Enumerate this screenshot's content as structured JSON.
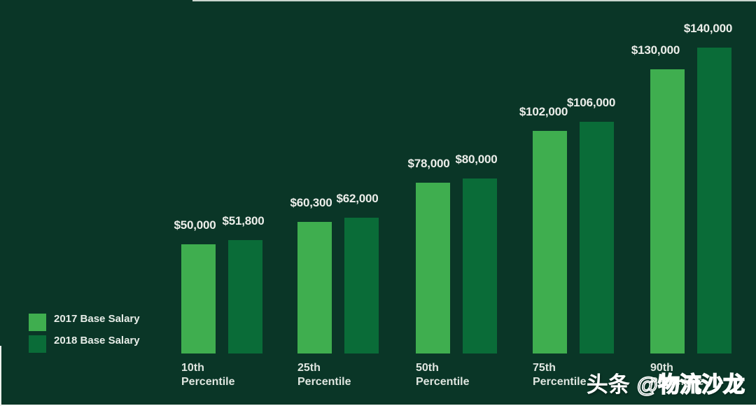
{
  "page": {
    "background_color": "#0a3627",
    "value_text_color": "#eceeea",
    "axis_text_color": "#dfe6e0"
  },
  "chart_data": {
    "type": "bar",
    "title": "",
    "categories": [
      "10th Percentile",
      "25th Percentile",
      "50th Percentile",
      "75th Percentile",
      "90th Percentile"
    ],
    "series": [
      {
        "name": "2017 Base Salary",
        "color": "#3fae4f",
        "values": [
          50000,
          60300,
          78000,
          102000,
          130000
        ],
        "labels": [
          "$50,000",
          "$60,300",
          "$78,000",
          "$102,000",
          "$130,000"
        ]
      },
      {
        "name": "2018 Base Salary",
        "color": "#0a6c38",
        "values": [
          51800,
          62000,
          80000,
          106000,
          140000
        ],
        "labels": [
          "$51,800",
          "$62,000",
          "$80,000",
          "$106,000",
          "$140,000"
        ]
      }
    ],
    "ylim": [
      0,
      140000
    ],
    "grid": false,
    "axes_drawn": false,
    "value_label_position": "above-bar",
    "legend_position": "bottom-left"
  },
  "legend": {
    "items": [
      {
        "label": "2017 Base Salary",
        "color": "#3fae4f"
      },
      {
        "label": "2018 Base Salary",
        "color": "#0a6c38"
      }
    ]
  },
  "watermark": {
    "brand": "头条",
    "handle": "@物流沙龙"
  }
}
